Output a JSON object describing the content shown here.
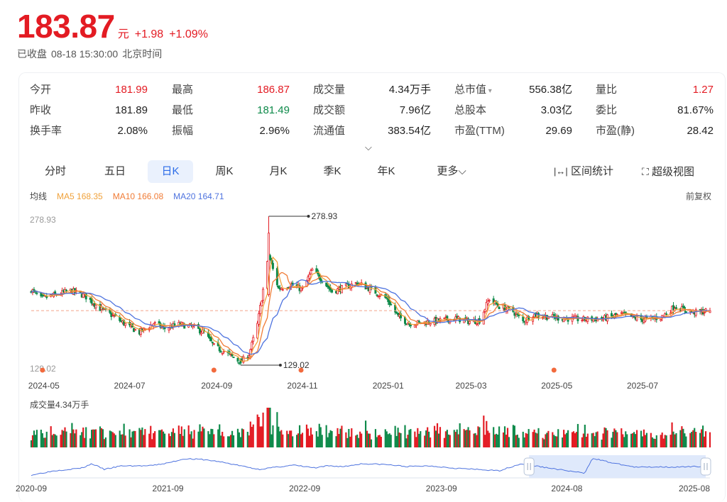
{
  "quote": {
    "price": "183.87",
    "unit": "元",
    "change": "+1.98",
    "change_pct": "+1.09%",
    "status": "已收盘",
    "datetime": "08-18 15:30:00",
    "tz": "北京时间"
  },
  "stats": [
    [
      {
        "label": "今开",
        "value": "181.99",
        "tone": "red"
      },
      {
        "label": "最高",
        "value": "186.87",
        "tone": "red"
      },
      {
        "label": "成交量",
        "value": "4.34万手"
      },
      {
        "label": "总市值",
        "value": "556.38亿",
        "dropdown": true
      },
      {
        "label": "量比",
        "value": "1.27",
        "tone": "red"
      }
    ],
    [
      {
        "label": "昨收",
        "value": "181.89"
      },
      {
        "label": "最低",
        "value": "181.49",
        "tone": "green"
      },
      {
        "label": "成交额",
        "value": "7.96亿"
      },
      {
        "label": "总股本",
        "value": "3.03亿"
      },
      {
        "label": "委比",
        "value": "81.67%"
      }
    ],
    [
      {
        "label": "换手率",
        "value": "2.08%"
      },
      {
        "label": "振幅",
        "value": "2.96%"
      },
      {
        "label": "流通值",
        "value": "383.54亿"
      },
      {
        "label": "市盈(TTM)",
        "value": "29.69"
      },
      {
        "label": "市盈(静)",
        "value": "28.42"
      }
    ]
  ],
  "tabs": [
    "分时",
    "五日",
    "日K",
    "周K",
    "月K",
    "季K",
    "年K",
    "更多"
  ],
  "active_tab": "日K",
  "tools": {
    "range": "区间统计",
    "super": "超级视图"
  },
  "ma_legend": {
    "title": "均线",
    "ma5": "MA5 168.35",
    "ma10": "MA10 166.08",
    "ma20": "MA20 164.71",
    "adjust": "前复权"
  },
  "colors": {
    "up": "#e31b23",
    "down": "#0e8a4a",
    "ma5": "#f0a13a",
    "ma10": "#f07b35",
    "ma20": "#4e73df",
    "accent": "#2a6be8"
  },
  "chart_data": {
    "type": "candlestick",
    "y_max_label": "278.93",
    "y_min_label": "129.02",
    "ylim": [
      129.02,
      278.93
    ],
    "max_marker": {
      "value": 278.93,
      "date": "2024-10-08",
      "label": "278.93"
    },
    "min_marker": {
      "value": 129.02,
      "date": "2024-09-18",
      "label": "129.02"
    },
    "last_close": 183.87,
    "x_ticks": [
      "2024-05",
      "2024-07",
      "2024-09",
      "2024-11",
      "2025-01",
      "2025-03",
      "2025-05",
      "2025-07"
    ],
    "event_dates": [
      "2024-04-30",
      "2024-08-30",
      "2024-10-31",
      "2025-04-29"
    ],
    "anchors": [
      [
        "2024-04-22",
        205
      ],
      [
        "2024-04-29",
        196
      ],
      [
        "2024-05-10",
        200
      ],
      [
        "2024-05-20",
        204
      ],
      [
        "2024-05-30",
        199
      ],
      [
        "2024-06-10",
        186
      ],
      [
        "2024-06-20",
        178
      ],
      [
        "2024-06-28",
        170
      ],
      [
        "2024-07-08",
        162
      ],
      [
        "2024-07-18",
        171
      ],
      [
        "2024-07-26",
        166
      ],
      [
        "2024-08-05",
        170
      ],
      [
        "2024-08-14",
        168
      ],
      [
        "2024-08-23",
        162
      ],
      [
        "2024-08-30",
        148
      ],
      [
        "2024-09-06",
        143
      ],
      [
        "2024-09-18",
        132
      ],
      [
        "2024-09-24",
        140
      ],
      [
        "2024-09-30",
        170
      ],
      [
        "2024-10-08",
        240
      ],
      [
        "2024-10-15",
        206
      ],
      [
        "2024-10-24",
        210
      ],
      [
        "2024-11-01",
        205
      ],
      [
        "2024-11-08",
        225
      ],
      [
        "2024-11-15",
        215
      ],
      [
        "2024-11-22",
        203
      ],
      [
        "2024-12-02",
        208
      ],
      [
        "2024-12-10",
        212
      ],
      [
        "2024-12-20",
        205
      ],
      [
        "2024-12-31",
        196
      ],
      [
        "2025-01-08",
        178
      ],
      [
        "2025-01-16",
        171
      ],
      [
        "2025-01-27",
        172
      ],
      [
        "2025-02-07",
        174
      ],
      [
        "2025-02-18",
        176
      ],
      [
        "2025-02-28",
        173
      ],
      [
        "2025-03-07",
        174
      ],
      [
        "2025-03-14",
        196
      ],
      [
        "2025-03-21",
        188
      ],
      [
        "2025-03-31",
        183
      ],
      [
        "2025-04-07",
        173
      ],
      [
        "2025-04-14",
        180
      ],
      [
        "2025-04-24",
        178
      ],
      [
        "2025-05-06",
        176
      ],
      [
        "2025-05-20",
        175
      ],
      [
        "2025-06-03",
        176
      ],
      [
        "2025-06-16",
        180
      ],
      [
        "2025-06-30",
        175
      ],
      [
        "2025-07-14",
        177
      ],
      [
        "2025-07-24",
        188
      ],
      [
        "2025-08-01",
        184
      ],
      [
        "2025-08-08",
        182
      ],
      [
        "2025-08-18",
        183.87
      ]
    ],
    "volume": {
      "label": "成交量4.34万手"
    },
    "navigator": {
      "x_ticks": [
        "2020-09",
        "2021-09",
        "2022-09",
        "2023-09",
        "2024-08",
        "2025-08"
      ],
      "anchors": [
        [
          "2020-09-01",
          120
        ],
        [
          "2020-11-01",
          150
        ],
        [
          "2021-01-15",
          170
        ],
        [
          "2021-02-10",
          200
        ],
        [
          "2021-03-15",
          160
        ],
        [
          "2021-05-01",
          185
        ],
        [
          "2021-07-15",
          185
        ],
        [
          "2021-09-01",
          205
        ],
        [
          "2021-10-15",
          235
        ],
        [
          "2021-12-01",
          230
        ],
        [
          "2022-01-15",
          215
        ],
        [
          "2022-03-15",
          185
        ],
        [
          "2022-05-01",
          160
        ],
        [
          "2022-06-15",
          175
        ],
        [
          "2022-08-01",
          190
        ],
        [
          "2022-10-01",
          170
        ],
        [
          "2022-11-01",
          185
        ],
        [
          "2022-12-15",
          180
        ],
        [
          "2023-02-01",
          200
        ],
        [
          "2023-04-01",
          195
        ],
        [
          "2023-06-01",
          180
        ],
        [
          "2023-08-01",
          185
        ],
        [
          "2023-10-01",
          170
        ],
        [
          "2023-12-01",
          160
        ],
        [
          "2024-02-01",
          150
        ],
        [
          "2024-04-01",
          200
        ],
        [
          "2024-06-01",
          175
        ],
        [
          "2024-09-18",
          132
        ],
        [
          "2024-10-08",
          240
        ],
        [
          "2024-12-01",
          205
        ],
        [
          "2025-02-01",
          175
        ],
        [
          "2025-04-01",
          178
        ],
        [
          "2025-06-01",
          176
        ],
        [
          "2025-08-18",
          184
        ]
      ]
    }
  }
}
